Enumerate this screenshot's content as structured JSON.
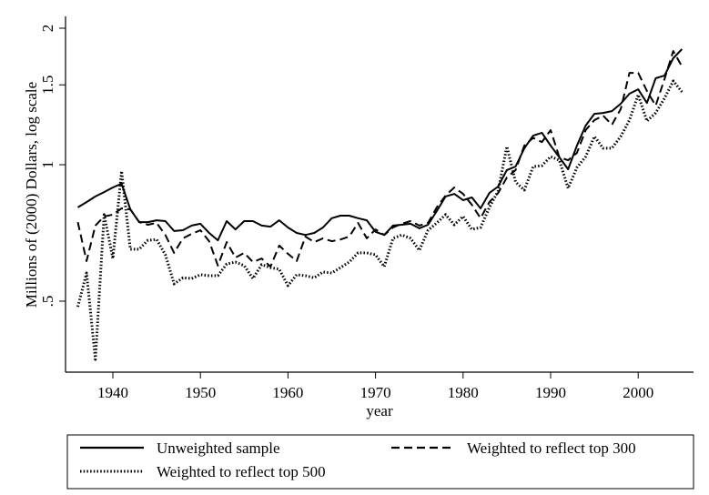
{
  "chart_data": {
    "type": "line",
    "title": "",
    "xlabel": "year",
    "ylabel": "Millions of (2000) Dollars, log scale",
    "y_scale": "log",
    "ylim": [
      0.37,
      2.0
    ],
    "xlim": [
      1936,
      2005
    ],
    "x_ticks": [
      1940,
      1950,
      1960,
      1970,
      1980,
      1990,
      2000
    ],
    "x_tick_labels": [
      "1940",
      "1950",
      "1960",
      "1970",
      "1980",
      "1990",
      "2000"
    ],
    "y_ticks": [
      0.5,
      1,
      1.5,
      2
    ],
    "y_tick_labels": [
      ".5",
      "1",
      "1.5",
      "2"
    ],
    "grid": false,
    "legend_position": "bottom",
    "x": [
      1936,
      1937,
      1938,
      1939,
      1940,
      1941,
      1942,
      1943,
      1944,
      1945,
      1946,
      1947,
      1948,
      1949,
      1950,
      1951,
      1952,
      1953,
      1954,
      1955,
      1956,
      1957,
      1958,
      1959,
      1960,
      1961,
      1962,
      1963,
      1964,
      1965,
      1966,
      1967,
      1968,
      1969,
      1970,
      1971,
      1972,
      1973,
      1974,
      1975,
      1976,
      1977,
      1978,
      1979,
      1980,
      1981,
      1982,
      1983,
      1984,
      1985,
      1986,
      1987,
      1988,
      1989,
      1990,
      1991,
      1992,
      1993,
      1994,
      1995,
      1996,
      1997,
      1998,
      1999,
      2000,
      2001,
      2002,
      2003,
      2004,
      2005
    ],
    "series": [
      {
        "name": "Unweighted sample",
        "style": "solid",
        "values": [
          0.805,
          0.827,
          0.851,
          0.87,
          0.891,
          0.908,
          0.797,
          0.747,
          0.747,
          0.754,
          0.751,
          0.714,
          0.717,
          0.734,
          0.741,
          0.707,
          0.681,
          0.751,
          0.72,
          0.751,
          0.751,
          0.734,
          0.73,
          0.754,
          0.727,
          0.707,
          0.7,
          0.707,
          0.727,
          0.762,
          0.772,
          0.772,
          0.762,
          0.754,
          0.711,
          0.7,
          0.734,
          0.737,
          0.741,
          0.724,
          0.737,
          0.79,
          0.851,
          0.862,
          0.835,
          0.847,
          0.801,
          0.866,
          0.895,
          0.973,
          0.991,
          1.087,
          1.159,
          1.176,
          1.102,
          1.038,
          0.977,
          1.102,
          1.22,
          1.295,
          1.301,
          1.313,
          1.363,
          1.434,
          1.467,
          1.368,
          1.551,
          1.572,
          1.717,
          1.798
        ]
      },
      {
        "name": "Weighted to reflect top 300",
        "style": "dashed",
        "values": [
          0.747,
          0.613,
          0.734,
          0.769,
          0.776,
          0.801,
          0.797,
          0.747,
          0.737,
          0.744,
          0.7,
          0.639,
          0.688,
          0.704,
          0.717,
          0.678,
          0.599,
          0.675,
          0.624,
          0.639,
          0.61,
          0.621,
          0.596,
          0.663,
          0.636,
          0.613,
          0.694,
          0.675,
          0.688,
          0.678,
          0.684,
          0.694,
          0.744,
          0.688,
          0.72,
          0.7,
          0.727,
          0.741,
          0.751,
          0.734,
          0.744,
          0.805,
          0.855,
          0.891,
          0.862,
          0.816,
          0.762,
          0.827,
          0.866,
          0.937,
          0.973,
          1.102,
          1.146,
          1.122,
          1.192,
          1.038,
          1.023,
          1.062,
          1.192,
          1.254,
          1.283,
          1.225,
          1.326,
          1.594,
          1.594,
          1.454,
          1.35,
          1.545,
          1.781,
          1.647
        ]
      },
      {
        "name": "Weighted to reflect top 500",
        "style": "dotted",
        "values": [
          0.486,
          0.577,
          0.372,
          0.776,
          0.621,
          0.968,
          0.651,
          0.651,
          0.681,
          0.684,
          0.633,
          0.546,
          0.563,
          0.561,
          0.572,
          0.569,
          0.569,
          0.604,
          0.61,
          0.599,
          0.561,
          0.602,
          0.593,
          0.588,
          0.541,
          0.572,
          0.569,
          0.563,
          0.58,
          0.577,
          0.593,
          0.61,
          0.639,
          0.639,
          0.633,
          0.596,
          0.688,
          0.7,
          0.688,
          0.647,
          0.717,
          0.744,
          0.776,
          0.737,
          0.769,
          0.72,
          0.727,
          0.805,
          0.875,
          1.097,
          0.916,
          0.879,
          0.991,
          0.995,
          1.042,
          1.023,
          0.887,
          0.986,
          1.042,
          1.154,
          1.087,
          1.087,
          1.154,
          1.254,
          1.427,
          1.248,
          1.301,
          1.401,
          1.53,
          1.447
        ]
      }
    ]
  }
}
